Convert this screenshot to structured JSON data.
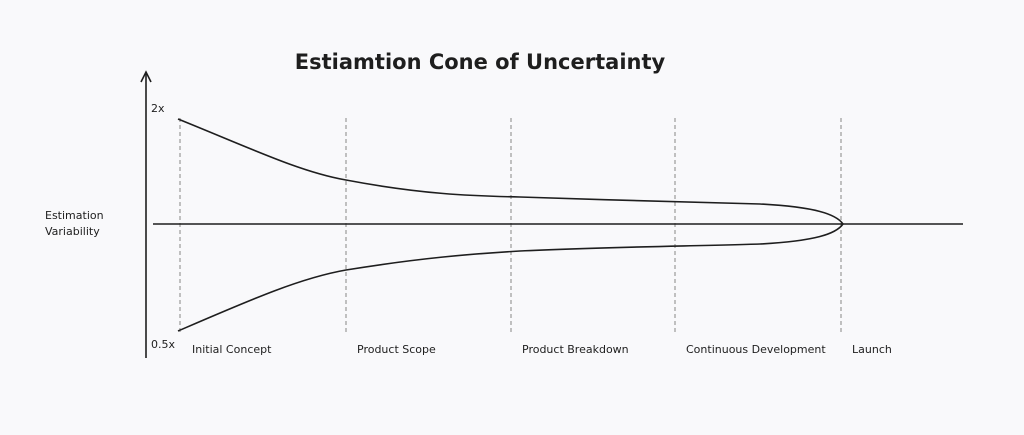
{
  "title": "Estiamtion Cone of Uncertainty",
  "y_axis": {
    "label_line1": "Estimation",
    "label_line2": "Variability",
    "top_tick": "2x",
    "bottom_tick": "0.5x"
  },
  "phases": [
    "Initial Concept",
    "Product Scope",
    "Product Breakdown",
    "Continuous Development",
    "Launch"
  ],
  "colors": {
    "background": "#f9f9fb",
    "ink": "#1e1e1e",
    "dashed": "#9a9a9a"
  }
}
